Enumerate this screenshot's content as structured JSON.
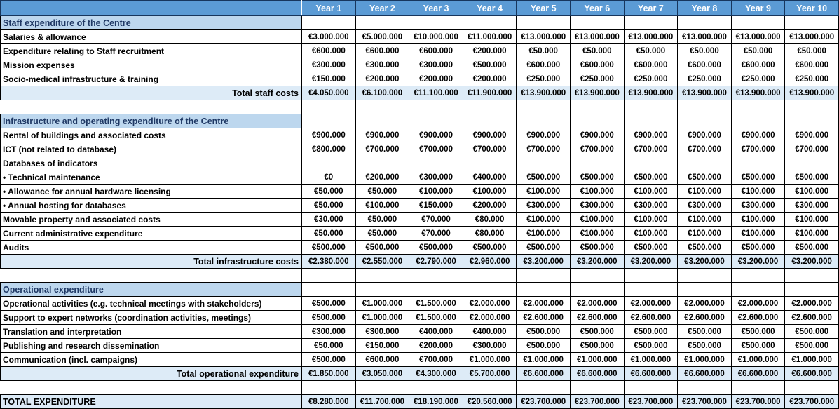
{
  "colors": {
    "header_bg": "#5B9BD5",
    "header_text": "#FFFFFF",
    "header_border": "#17365D",
    "section_bg": "#BDD7EE",
    "section_text": "#1F3864",
    "total_bg": "#DDEBF7",
    "grid": "#000000"
  },
  "table": {
    "corner_label": "",
    "columns": [
      "Year 1",
      "Year 2",
      "Year 3",
      "Year 4",
      "Year 5",
      "Year 6",
      "Year 7",
      "Year 8",
      "Year 9",
      "Year 10"
    ],
    "sections": [
      {
        "title": "Staff expenditure of the Centre",
        "rows": [
          {
            "label": "Salaries & allowance",
            "values": [
              "€3.000.000",
              "€5.000.000",
              "€10.000.000",
              "€11.000.000",
              "€13.000.000",
              "€13.000.000",
              "€13.000.000",
              "€13.000.000",
              "€13.000.000",
              "€13.000.000"
            ]
          },
          {
            "label": "Expenditure relating to Staff recruitment",
            "values": [
              "€600.000",
              "€600.000",
              "€600.000",
              "€200.000",
              "€50.000",
              "€50.000",
              "€50.000",
              "€50.000",
              "€50.000",
              "€50.000"
            ]
          },
          {
            "label": "Mission expenses",
            "values": [
              "€300.000",
              "€300.000",
              "€300.000",
              "€500.000",
              "€600.000",
              "€600.000",
              "€600.000",
              "€600.000",
              "€600.000",
              "€600.000"
            ]
          },
          {
            "label": "Socio-medical infrastructure & training",
            "values": [
              "€150.000",
              "€200.000",
              "€200.000",
              "€200.000",
              "€250.000",
              "€250.000",
              "€250.000",
              "€250.000",
              "€250.000",
              "€250.000"
            ]
          }
        ],
        "total": {
          "label": "Total staff costs",
          "values": [
            "€4.050.000",
            "€6.100.000",
            "€11.100.000",
            "€11.900.000",
            "€13.900.000",
            "€13.900.000",
            "€13.900.000",
            "€13.900.000",
            "€13.900.000",
            "€13.900.000"
          ]
        }
      },
      {
        "title": "Infrastructure and operating expenditure of the Centre",
        "rows": [
          {
            "label": "Rental of buildings and associated costs",
            "values": [
              "€900.000",
              "€900.000",
              "€900.000",
              "€900.000",
              "€900.000",
              "€900.000",
              "€900.000",
              "€900.000",
              "€900.000",
              "€900.000"
            ]
          },
          {
            "label": "ICT (not related to database)",
            "values": [
              "€800.000",
              "€700.000",
              "€700.000",
              "€700.000",
              "€700.000",
              "€700.000",
              "€700.000",
              "€700.000",
              "€700.000",
              "€700.000"
            ]
          },
          {
            "label": "Databases of indicators",
            "values": [
              "",
              "",
              "",
              "",
              "",
              "",
              "",
              "",
              "",
              ""
            ]
          },
          {
            "label": "• Technical maintenance",
            "values": [
              "€0",
              "€200.000",
              "€300.000",
              "€400.000",
              "€500.000",
              "€500.000",
              "€500.000",
              "€500.000",
              "€500.000",
              "€500.000"
            ]
          },
          {
            "label": "• Allowance for annual hardware licensing",
            "values": [
              "€50.000",
              "€50.000",
              "€100.000",
              "€100.000",
              "€100.000",
              "€100.000",
              "€100.000",
              "€100.000",
              "€100.000",
              "€100.000"
            ]
          },
          {
            "label": "• Annual hosting for databases",
            "values": [
              "€50.000",
              "€100.000",
              "€150.000",
              "€200.000",
              "€300.000",
              "€300.000",
              "€300.000",
              "€300.000",
              "€300.000",
              "€300.000"
            ]
          },
          {
            "label": "Movable property and associated costs",
            "values": [
              "€30.000",
              "€50.000",
              "€70.000",
              "€80.000",
              "€100.000",
              "€100.000",
              "€100.000",
              "€100.000",
              "€100.000",
              "€100.000"
            ]
          },
          {
            "label": "Current administrative expenditure",
            "values": [
              "€50.000",
              "€50.000",
              "€70.000",
              "€80.000",
              "€100.000",
              "€100.000",
              "€100.000",
              "€100.000",
              "€100.000",
              "€100.000"
            ]
          },
          {
            "label": "Audits",
            "values": [
              "€500.000",
              "€500.000",
              "€500.000",
              "€500.000",
              "€500.000",
              "€500.000",
              "€500.000",
              "€500.000",
              "€500.000",
              "€500.000"
            ]
          }
        ],
        "total": {
          "label": "Total infrastructure costs",
          "values": [
            "€2.380.000",
            "€2.550.000",
            "€2.790.000",
            "€2.960.000",
            "€3.200.000",
            "€3.200.000",
            "€3.200.000",
            "€3.200.000",
            "€3.200.000",
            "€3.200.000"
          ]
        }
      },
      {
        "title": "Operational expenditure",
        "rows": [
          {
            "label": "Operational activities (e.g. technical meetings with stakeholders)",
            "values": [
              "€500.000",
              "€1.000.000",
              "€1.500.000",
              "€2.000.000",
              "€2.000.000",
              "€2.000.000",
              "€2.000.000",
              "€2.000.000",
              "€2.000.000",
              "€2.000.000"
            ]
          },
          {
            "label": "Support to expert networks (coordination activities, meetings)",
            "values": [
              "€500.000",
              "€1.000.000",
              "€1.500.000",
              "€2.000.000",
              "€2.600.000",
              "€2.600.000",
              "€2.600.000",
              "€2.600.000",
              "€2.600.000",
              "€2.600.000"
            ]
          },
          {
            "label": "Translation and interpretation",
            "values": [
              "€300.000",
              "€300.000",
              "€400.000",
              "€400.000",
              "€500.000",
              "€500.000",
              "€500.000",
              "€500.000",
              "€500.000",
              "€500.000"
            ]
          },
          {
            "label": "Publishing and research dissemination",
            "values": [
              "€50.000",
              "€150.000",
              "€200.000",
              "€300.000",
              "€500.000",
              "€500.000",
              "€500.000",
              "€500.000",
              "€500.000",
              "€500.000"
            ]
          },
          {
            "label": "Communication (incl. campaigns)",
            "values": [
              "€500.000",
              "€600.000",
              "€700.000",
              "€1.000.000",
              "€1.000.000",
              "€1.000.000",
              "€1.000.000",
              "€1.000.000",
              "€1.000.000",
              "€1.000.000"
            ]
          }
        ],
        "total": {
          "label": "Total operational expenditure",
          "values": [
            "€1.850.000",
            "€3.050.000",
            "€4.300.000",
            "€5.700.000",
            "€6.600.000",
            "€6.600.000",
            "€6.600.000",
            "€6.600.000",
            "€6.600.000",
            "€6.600.000"
          ]
        }
      }
    ],
    "grand_total": {
      "label": "TOTAL EXPENDITURE",
      "values": [
        "€8.280.000",
        "€11.700.000",
        "€18.190.000",
        "€20.560.000",
        "€23.700.000",
        "€23.700.000",
        "€23.700.000",
        "€23.700.000",
        "€23.700.000",
        "€23.700.000"
      ]
    }
  }
}
